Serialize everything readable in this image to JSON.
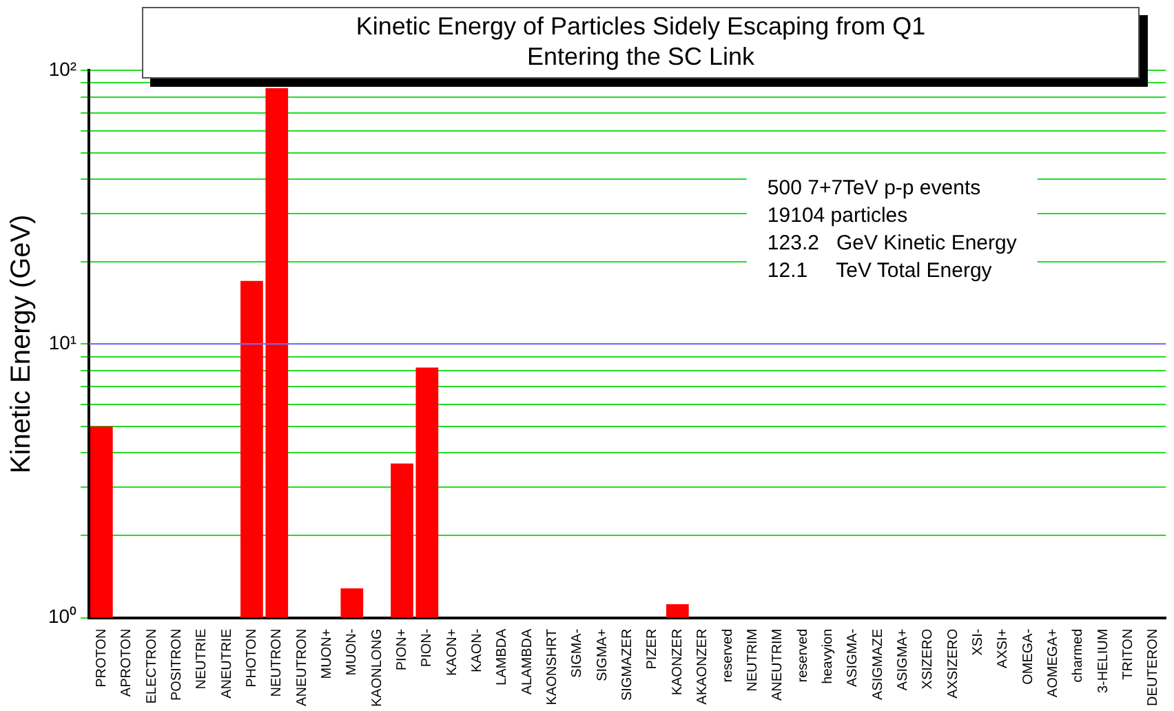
{
  "chart_data": {
    "type": "bar",
    "title": "Kinetic Energy of Particles Sidely Escaping from Q1\nEntering the SC Link",
    "ylabel": "Kinetic Energy (GeV)",
    "categories": [
      "PROTON",
      "APROTON",
      "ELECTRON",
      "POSITRON",
      "NEUTRIE",
      "ANEUTRIE",
      "PHOTON",
      "NEUTRON",
      "ANEUTRON",
      "MUON+",
      "MUON-",
      "KAONLONG",
      "PION+",
      "PION-",
      "KAON+",
      "KAON-",
      "LAMBDA",
      "ALAMBDA",
      "KAONSHRT",
      "SIGMA-",
      "SIGMA+",
      "SIGMAZER",
      "PIZER",
      "KAONZER",
      "AKAONZER",
      "reserved",
      "NEUTRIM",
      "ANEUTRIM",
      "reserved",
      "heavyion",
      "ASIGMA-",
      "ASIGMAZE",
      "ASIGMA+",
      "XSIZERO",
      "AXSIZERO",
      "XSI-",
      "AXSI+",
      "OMEGA-",
      "AOMEGA+",
      "charmed",
      "3-HELIUM",
      "TRITON",
      "DEUTERON"
    ],
    "values": [
      5.0,
      null,
      null,
      null,
      null,
      null,
      17,
      86,
      null,
      null,
      1.28,
      null,
      3.66,
      8.2,
      null,
      null,
      null,
      null,
      null,
      null,
      null,
      null,
      null,
      1.12,
      null,
      null,
      null,
      null,
      null,
      null,
      null,
      null,
      null,
      null,
      null,
      null,
      null,
      null,
      null,
      null,
      null,
      null,
      null
    ],
    "color": "#ff0000",
    "log": true,
    "ylim": [
      1,
      100
    ],
    "yticks": [
      {
        "value": 1,
        "label": "10⁰"
      },
      {
        "value": 2,
        "label": null
      },
      {
        "value": 3,
        "label": null
      },
      {
        "value": 4,
        "label": null
      },
      {
        "value": 5,
        "label": null
      },
      {
        "value": 6,
        "label": null
      },
      {
        "value": 7,
        "label": null
      },
      {
        "value": 8,
        "label": null
      },
      {
        "value": 9,
        "label": null
      },
      {
        "value": 10,
        "label": "10¹"
      },
      {
        "value": 20,
        "label": null
      },
      {
        "value": 30,
        "label": null
      },
      {
        "value": 40,
        "label": null
      },
      {
        "value": 50,
        "label": null
      },
      {
        "value": 60,
        "label": null
      },
      {
        "value": 70,
        "label": null
      },
      {
        "value": 80,
        "label": null
      },
      {
        "value": 90,
        "label": null
      },
      {
        "value": 100,
        "label": "10²"
      }
    ],
    "grid": "y",
    "legend": false,
    "ref_lines": [
      {
        "axis": "y",
        "value": 10,
        "color": "#7070ff"
      }
    ],
    "annotations": [
      "500 7+7TeV p-p events",
      "19104 particles",
      "123.2   GeV Kinetic Energy",
      "12.1     TeV Total Energy"
    ]
  }
}
